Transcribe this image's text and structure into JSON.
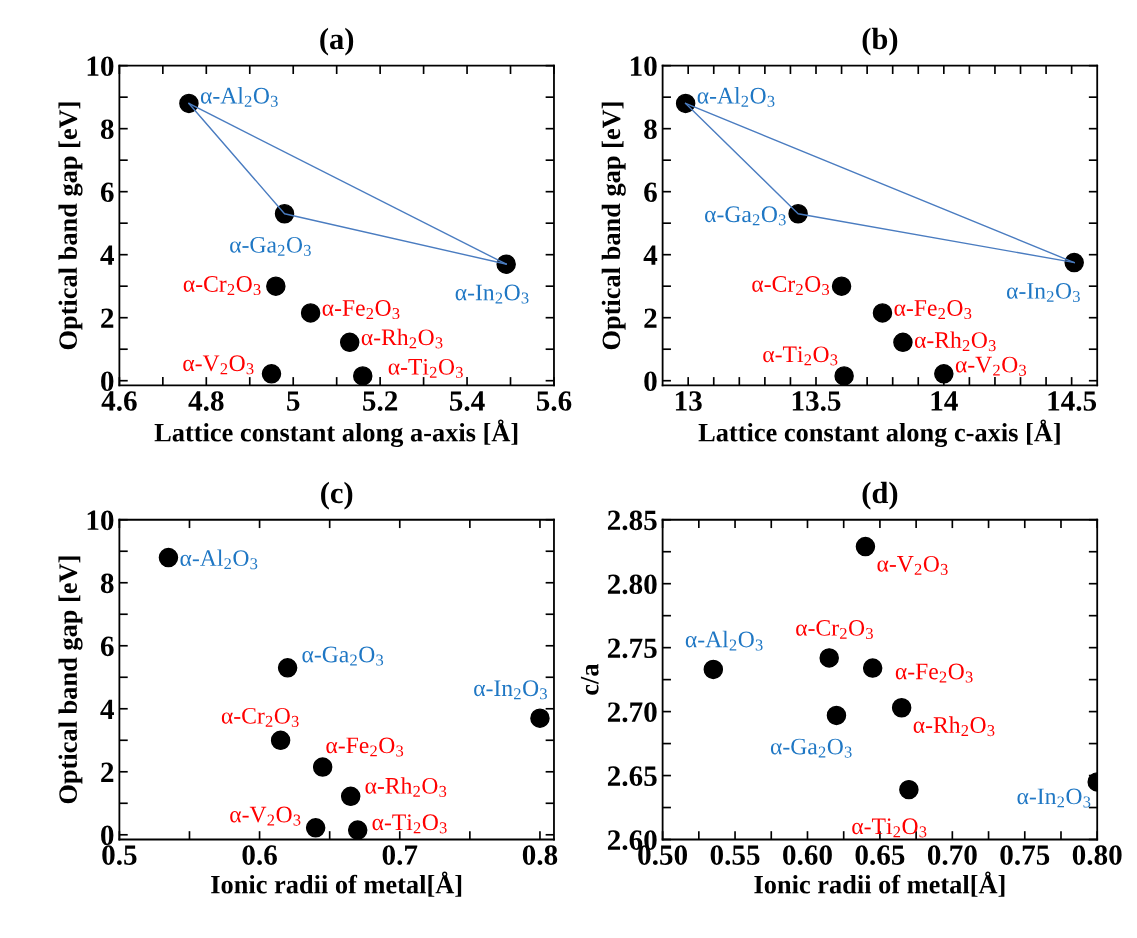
{
  "chart_data": [
    {
      "type": "scatter",
      "title": "(a)",
      "xlabel": "Lattice constant along a-axis [Å]",
      "ylabel": "Optical band gap [eV]",
      "marker": "circle",
      "xlim": [
        4.6,
        5.6
      ],
      "ylim": [
        -0.15,
        10
      ],
      "xticks": [
        4.6,
        {
          "value": 4.7,
          "label": null
        },
        4.8,
        {
          "value": 4.9,
          "label": null
        },
        {
          "value": 5.0,
          "label": "5"
        },
        {
          "value": 5.1,
          "label": null
        },
        5.2,
        {
          "value": 5.3,
          "label": null
        },
        5.4,
        {
          "value": 5.5,
          "label": null
        },
        5.6
      ],
      "yticks": [
        0,
        {
          "value": 1,
          "label": null
        },
        2,
        {
          "value": 3,
          "label": null
        },
        4,
        {
          "value": 5,
          "label": null
        },
        6,
        {
          "value": 7,
          "label": null
        },
        8,
        {
          "value": 9,
          "label": null
        },
        10
      ],
      "series": [
        {
          "type": "line",
          "color": "#4a7cc0",
          "marker": "none",
          "x": [
            4.76,
            4.98,
            5.49
          ],
          "values": [
            8.8,
            5.3,
            3.7
          ]
        },
        {
          "type": "line",
          "color": "#4a7cc0",
          "marker": "none",
          "x": [
            4.76,
            5.49
          ],
          "values": [
            8.8,
            3.7
          ]
        },
        {
          "color": "#000000",
          "x": [
            4.76,
            4.98,
            5.49
          ],
          "values": [
            8.8,
            5.3,
            3.7
          ],
          "value_labels": [
            "α-Al$_{2}$O$_{3}$",
            "α-Ga$_{2}$O$_{3}$",
            "α-In$_{2}$O$_{3}$"
          ]
        },
        {
          "color": "#000000",
          "x": [
            4.96,
            5.04,
            5.13,
            4.95,
            5.16
          ],
          "values": [
            3.0,
            2.15,
            1.22,
            0.22,
            0.15
          ],
          "value_labels": [
            "α-Cr$_{2}$O$_{3}$",
            "α-Fe$_{2}$O$_{3}$",
            "α-Rh$_{2}$O$_{3}$",
            "α-V$_{2}$O$_{3}$",
            "α-Ti$_{2}$O$_{3}$"
          ]
        }
      ]
    },
    {
      "type": "scatter",
      "title": "(b)",
      "xlabel": "Lattice constant along c-axis [Å]",
      "ylabel": "Optical band gap [eV]",
      "marker": "circle",
      "xlim": [
        12.9,
        14.6
      ],
      "ylim": [
        -0.15,
        10
      ],
      "xticks": [
        13,
        {
          "value": 13.1,
          "label": null
        },
        {
          "value": 13.2,
          "label": null
        },
        {
          "value": 13.3,
          "label": null
        },
        {
          "value": 13.4,
          "label": null
        },
        13.5,
        {
          "value": 13.6,
          "label": null
        },
        {
          "value": 13.7,
          "label": null
        },
        {
          "value": 13.8,
          "label": null
        },
        {
          "value": 13.9,
          "label": null
        },
        14,
        {
          "value": 14.1,
          "label": null
        },
        {
          "value": 14.2,
          "label": null
        },
        {
          "value": 14.3,
          "label": null
        },
        {
          "value": 14.4,
          "label": null
        },
        14.5
      ],
      "yticks": [
        0,
        {
          "value": 1,
          "label": null
        },
        2,
        {
          "value": 3,
          "label": null
        },
        4,
        {
          "value": 5,
          "label": null
        },
        6,
        {
          "value": 7,
          "label": null
        },
        8,
        {
          "value": 9,
          "label": null
        },
        10
      ],
      "series": [
        {
          "type": "line",
          "color": "#4a7cc0",
          "marker": "none",
          "x": [
            12.99,
            13.43,
            14.51
          ],
          "values": [
            8.8,
            5.3,
            3.75
          ]
        },
        {
          "type": "line",
          "color": "#4a7cc0",
          "marker": "none",
          "x": [
            12.99,
            14.51
          ],
          "values": [
            8.8,
            3.75
          ]
        },
        {
          "color": "#000000",
          "x": [
            12.99,
            13.43,
            14.51
          ],
          "values": [
            8.8,
            5.3,
            3.75
          ],
          "value_labels": [
            "α-Al$_{2}$O$_{3}$",
            "α-Ga$_{2}$O$_{3}$",
            "α-In$_{2}$O$_{3}$"
          ]
        },
        {
          "color": "#000000",
          "x": [
            13.6,
            13.76,
            13.84,
            13.61,
            14.0
          ],
          "values": [
            3.0,
            2.15,
            1.22,
            0.15,
            0.22
          ],
          "value_labels": [
            "α-Cr$_{2}$O$_{3}$",
            "α-Fe$_{2}$O$_{3}$",
            "α-Rh$_{2}$O$_{3}$",
            "α-Ti$_{2}$O$_{3}$",
            "α-V$_{2}$O$_{3}$"
          ]
        }
      ]
    },
    {
      "type": "scatter",
      "title": "(c)",
      "xlabel": "Ionic radii of metal[Å]",
      "ylabel": "Optical band gap [eV]",
      "marker": "circle",
      "xlim": [
        0.5,
        0.81
      ],
      "ylim": [
        -0.15,
        10
      ],
      "xticks": [
        0.5,
        {
          "value": 0.55,
          "label": null
        },
        0.6,
        {
          "value": 0.65,
          "label": null
        },
        0.7,
        {
          "value": 0.75,
          "label": null
        },
        0.8
      ],
      "yticks": [
        0,
        {
          "value": 1,
          "label": null
        },
        2,
        {
          "value": 3,
          "label": null
        },
        4,
        {
          "value": 5,
          "label": null
        },
        6,
        {
          "value": 7,
          "label": null
        },
        8,
        {
          "value": 9,
          "label": null
        },
        10
      ],
      "series": [
        {
          "color": "#000000",
          "x": [
            0.535,
            0.62,
            0.8
          ],
          "values": [
            8.8,
            5.3,
            3.7
          ],
          "value_labels": [
            "α-Al$_{2}$O$_{3}$",
            "α-Ga$_{2}$O$_{3}$",
            "α-In$_{2}$O$_{3}$"
          ]
        },
        {
          "color": "#000000",
          "x": [
            0.615,
            0.645,
            0.665,
            0.64,
            0.67
          ],
          "values": [
            3.0,
            2.15,
            1.22,
            0.22,
            0.15
          ],
          "value_labels": [
            "α-Cr$_{2}$O$_{3}$",
            "α-Fe$_{2}$O$_{3}$",
            "α-Rh$_{2}$O$_{3}$",
            "α-V$_{2}$O$_{3}$",
            "α-Ti$_{2}$O$_{3}$"
          ]
        }
      ]
    },
    {
      "type": "scatter",
      "title": "(d)",
      "xlabel": "Ionic radii of metal[Å]",
      "ylabel": "c/a",
      "marker": "circle",
      "xlim": [
        0.5,
        0.8
      ],
      "ylim": [
        2.6,
        2.85
      ],
      "xticks": [
        {
          "value": 0.5,
          "label": "0.50"
        },
        {
          "value": 0.525,
          "label": null
        },
        {
          "value": 0.55,
          "label": "0.55"
        },
        {
          "value": 0.575,
          "label": null
        },
        {
          "value": 0.6,
          "label": "0.60"
        },
        {
          "value": 0.625,
          "label": null
        },
        {
          "value": 0.65,
          "label": "0.65"
        },
        {
          "value": 0.675,
          "label": null
        },
        {
          "value": 0.7,
          "label": "0.70"
        },
        {
          "value": 0.725,
          "label": null
        },
        {
          "value": 0.75,
          "label": "0.75"
        },
        {
          "value": 0.775,
          "label": null
        },
        {
          "value": 0.8,
          "label": "0.80"
        }
      ],
      "yticks": [
        {
          "value": 2.6,
          "label": "2.60"
        },
        {
          "value": 2.625,
          "label": null
        },
        {
          "value": 2.65,
          "label": "2.65"
        },
        {
          "value": 2.675,
          "label": null
        },
        {
          "value": 2.7,
          "label": "2.70"
        },
        {
          "value": 2.725,
          "label": null
        },
        {
          "value": 2.75,
          "label": "2.75"
        },
        {
          "value": 2.775,
          "label": null
        },
        {
          "value": 2.8,
          "label": "2.80"
        },
        {
          "value": 2.825,
          "label": null
        },
        {
          "value": 2.85,
          "label": "2.85"
        }
      ],
      "series": [
        {
          "color": "#000000",
          "x": [
            0.535,
            0.62,
            0.8
          ],
          "values": [
            2.733,
            2.697,
            2.645
          ],
          "value_labels": [
            "α-Al$_{2}$O$_{3}$",
            "α-Ga$_{2}$O$_{3}$",
            "α-In$_{2}$O$_{3}$"
          ]
        },
        {
          "color": "#000000",
          "x": [
            0.64,
            0.615,
            0.645,
            0.665,
            0.67
          ],
          "values": [
            2.829,
            2.742,
            2.734,
            2.703,
            2.639
          ],
          "value_labels": [
            "α-V$_{2}$O$_{3}$",
            "α-Cr$_{2}$O$_{3}$",
            "α-Fe$_{2}$O$_{3}$",
            "α-Rh$_{2}$O$_{3}$",
            "α-Ti$_{2}$O$_{3}$"
          ]
        }
      ]
    }
  ]
}
